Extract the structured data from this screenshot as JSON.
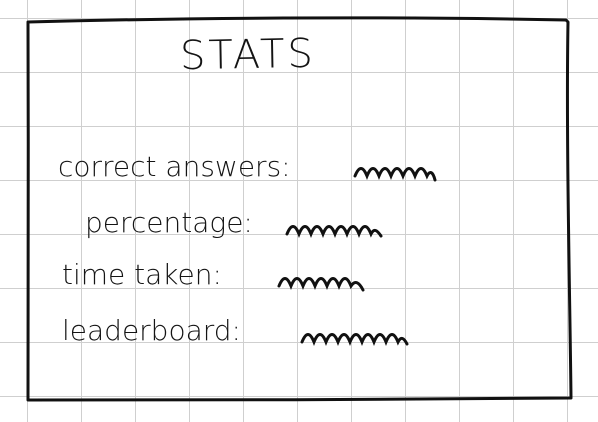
{
  "title": "STATS",
  "stats": [
    {
      "label": "correct answers:",
      "value": ""
    },
    {
      "label": "percentage:",
      "value": ""
    },
    {
      "label": "time taken:",
      "value": ""
    },
    {
      "label": "leaderboard:",
      "value": ""
    }
  ]
}
